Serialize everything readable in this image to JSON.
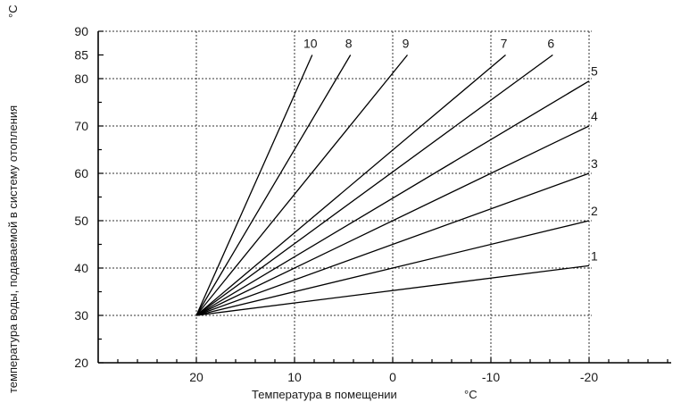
{
  "chart_data": {
    "type": "line",
    "title": "",
    "xlabel": "Температура в помещении",
    "xunit": "°C",
    "ylabel": "температура воды, подаваемой в систему отопления",
    "yunit": "°C",
    "x_reversed": true,
    "xlim": [
      30,
      -30
    ],
    "ylim": [
      20,
      90
    ],
    "x_major_ticks": [
      20,
      10,
      0,
      -10,
      -20
    ],
    "y_major_ticks": [
      20,
      30,
      40,
      50,
      60,
      70,
      80,
      85,
      90
    ],
    "y_grid": [
      30,
      40,
      50,
      60,
      70,
      80
    ],
    "x_grid": [
      20,
      10,
      0,
      -10,
      -20
    ],
    "grid": true,
    "series": [
      {
        "name": "1",
        "x": [
          20,
          -20
        ],
        "y": [
          30,
          40.5
        ]
      },
      {
        "name": "2",
        "x": [
          20,
          -20
        ],
        "y": [
          30,
          50
        ]
      },
      {
        "name": "3",
        "x": [
          20,
          -20
        ],
        "y": [
          30,
          60
        ]
      },
      {
        "name": "4",
        "x": [
          20,
          -20
        ],
        "y": [
          30,
          70
        ]
      },
      {
        "name": "5",
        "x": [
          20,
          -20
        ],
        "y": [
          30,
          79.5
        ]
      },
      {
        "name": "6",
        "x": [
          20,
          -16.3
        ],
        "y": [
          30,
          85
        ]
      },
      {
        "name": "7",
        "x": [
          20,
          -11.5
        ],
        "y": [
          30,
          85
        ]
      },
      {
        "name": "8",
        "x": [
          20,
          4.3
        ],
        "y": [
          30,
          85
        ]
      },
      {
        "name": "9",
        "x": [
          20,
          -1.5
        ],
        "y": [
          30,
          85
        ]
      },
      {
        "name": "10",
        "x": [
          20,
          8.2
        ],
        "y": [
          30,
          85
        ]
      }
    ]
  }
}
